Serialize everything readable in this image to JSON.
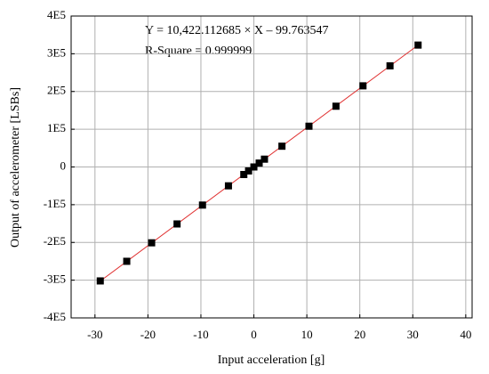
{
  "chart_data": {
    "type": "scatter",
    "xlabel": "Input acceleration [g]",
    "ylabel": "Output of accelerometer [LSBs]",
    "annotations": [
      "Y = 10,422.112685 × X – 99.763547",
      "R-Square = 0.999999"
    ],
    "x": [
      -29,
      -24,
      -19.3,
      -14.5,
      -9.7,
      -4.8,
      -1.9,
      -1,
      0,
      1,
      2,
      5.3,
      10.4,
      15.5,
      20.6,
      25.7,
      31
    ],
    "series": [
      {
        "color": "#000000",
        "values": [
          -302000,
          -250000,
          -201000,
          -151000,
          -101000,
          -50000,
          -20000,
          -10500,
          0,
          10300,
          20700,
          55000,
          108000,
          161000,
          215000,
          268000,
          323000
        ]
      }
    ],
    "fit_line": {
      "color": "#e03030",
      "x": [
        -29,
        31
      ],
      "values": [
        -302341,
        322986
      ]
    },
    "xlim": [
      -34.5,
      41.2
    ],
    "ylim": [
      -400000,
      400000
    ],
    "xticks": [
      -30,
      -20,
      -10,
      0,
      10,
      20,
      30,
      40
    ],
    "yticks": [
      {
        "value": -400000,
        "label": "-4E5"
      },
      {
        "value": -300000,
        "label": "-3E5"
      },
      {
        "value": -200000,
        "label": "-2E5"
      },
      {
        "value": -100000,
        "label": "-1E5"
      },
      0,
      {
        "value": 100000,
        "label": "1E5"
      },
      {
        "value": 200000,
        "label": "2E5"
      },
      {
        "value": 300000,
        "label": "3E5"
      },
      {
        "value": 400000,
        "label": "4E5"
      }
    ],
    "grid": true
  }
}
